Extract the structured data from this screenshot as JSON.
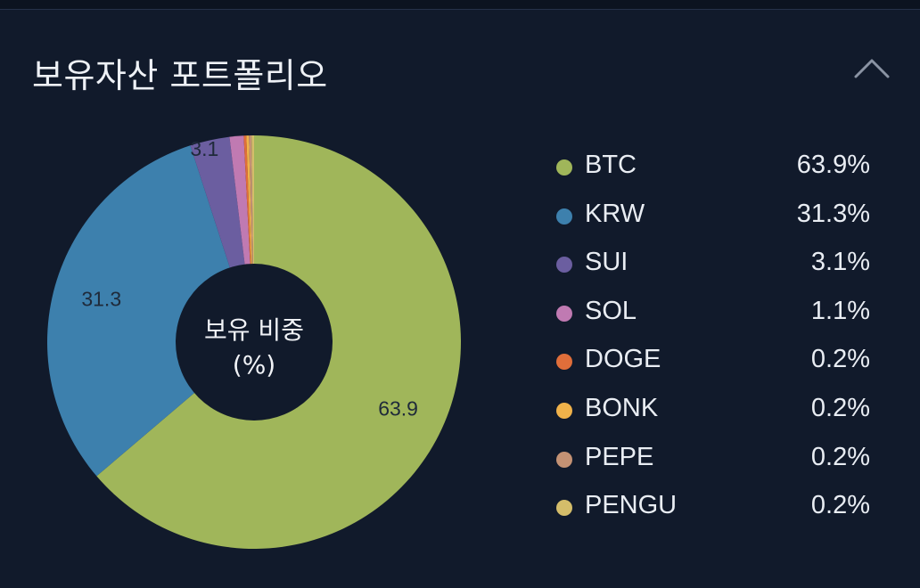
{
  "header": {
    "title": "보유자산 포트폴리오",
    "collapse_icon": "chevron-up-icon"
  },
  "chart_data": {
    "type": "pie",
    "center_label_line1": "보유 비중",
    "center_label_line2": "(%)",
    "slices": [
      {
        "name": "BTC",
        "value": 63.9,
        "label": "63.9",
        "pct": "63.9%",
        "color": "#a0b65a"
      },
      {
        "name": "KRW",
        "value": 31.3,
        "label": "31.3",
        "pct": "31.3%",
        "color": "#3d80ad"
      },
      {
        "name": "SUI",
        "value": 3.1,
        "label": "3.1",
        "pct": "3.1%",
        "color": "#6b5ea0"
      },
      {
        "name": "SOL",
        "value": 1.1,
        "label": "",
        "pct": "1.1%",
        "color": "#c07ab2"
      },
      {
        "name": "DOGE",
        "value": 0.2,
        "label": "",
        "pct": "0.2%",
        "color": "#e06e3a"
      },
      {
        "name": "BONK",
        "value": 0.2,
        "label": "",
        "pct": "0.2%",
        "color": "#f0b24a"
      },
      {
        "name": "PEPE",
        "value": 0.2,
        "label": "",
        "pct": "0.2%",
        "color": "#c49274"
      },
      {
        "name": "PENGU",
        "value": 0.2,
        "label": "",
        "pct": "0.2%",
        "color": "#d4bd6a"
      }
    ],
    "legend_position": "right"
  }
}
